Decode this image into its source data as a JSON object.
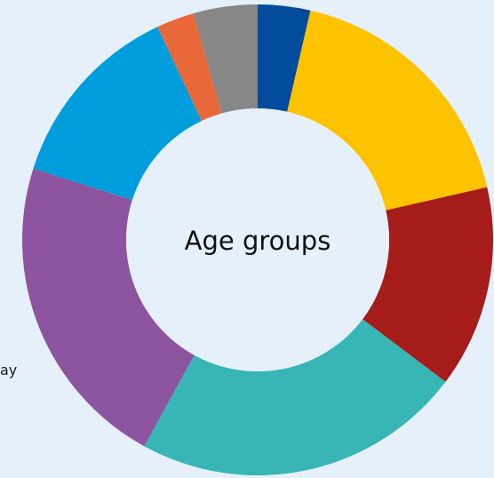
{
  "edge_text": "ay",
  "chart_data": {
    "type": "pie",
    "variant": "donut",
    "title": "",
    "center_label": "Age groups",
    "start_angle_deg": 0,
    "direction": "clockwise",
    "slices": [
      {
        "value": 3.6,
        "color": "#004b9b"
      },
      {
        "value": 17.8,
        "color": "#fdc300"
      },
      {
        "value": 13.9,
        "color": "#a61c1b"
      },
      {
        "value": 22.7,
        "color": "#37b6b5"
      },
      {
        "value": 21.9,
        "color": "#8d559f"
      },
      {
        "value": 13.1,
        "color": "#009ddc"
      },
      {
        "value": 2.6,
        "color": "#e8683a"
      },
      {
        "value": 4.4,
        "color": "#878787"
      }
    ]
  }
}
